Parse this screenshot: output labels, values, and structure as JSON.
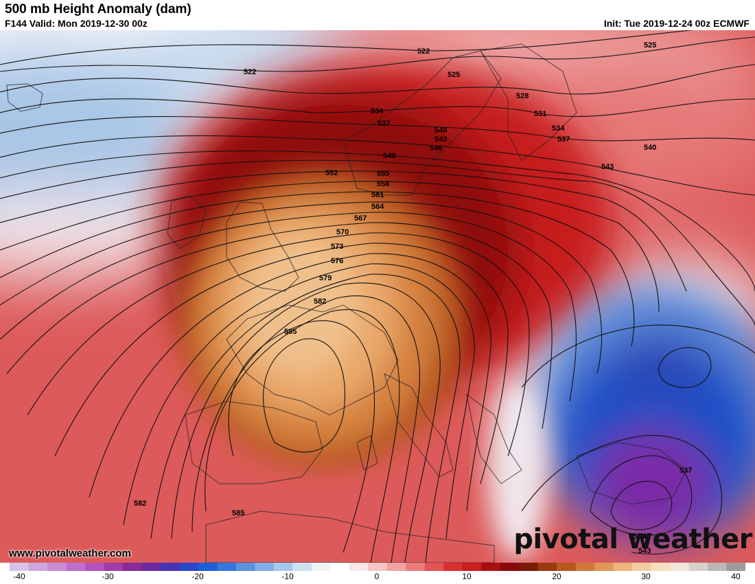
{
  "header": {
    "title": "500 mb Height Anomaly (dam)",
    "valid": "F144 Valid: Mon 2019-12-30 00z",
    "init": "Init: Tue 2019-12-24 00z ECMWF"
  },
  "footer": {
    "website": "www.pivotalweather.com",
    "logo": "pivotal weather"
  },
  "contour_labels": [
    "522",
    "522",
    "525",
    "525",
    "528",
    "531",
    "534",
    "534",
    "537",
    "537",
    "540",
    "540",
    "543",
    "543",
    "546",
    "549",
    "552",
    "555",
    "558",
    "561",
    "564",
    "567",
    "570",
    "573",
    "576",
    "579",
    "582",
    "582",
    "585",
    "585",
    "537",
    "540",
    "540",
    "543"
  ],
  "colorbar": {
    "min": -40,
    "max": 40,
    "tick_labels": [
      "-40",
      "-30",
      "-20",
      "-10",
      "0",
      "10",
      "20",
      "30",
      "40"
    ],
    "colors": [
      "#d8c2e8",
      "#d0a6e0",
      "#c98ad6",
      "#c06ecc",
      "#b452bd",
      "#a23aa8",
      "#8a2a9a",
      "#6a2aa0",
      "#4a32b4",
      "#2c46c8",
      "#1c5ed6",
      "#3476da",
      "#5a92e0",
      "#80aee6",
      "#a6c8ec",
      "#cce0f2",
      "#eef4fa",
      "#ffffff",
      "#fae6e6",
      "#f6c6c6",
      "#f0a2a2",
      "#ea7c7c",
      "#e25454",
      "#d8302e",
      "#c81e1e",
      "#a81010",
      "#860a0a",
      "#7a1c08",
      "#9a3a0e",
      "#b8581e",
      "#cf7838",
      "#e09858",
      "#ecb47c",
      "#f4cca0",
      "#f8dec0",
      "#efe6dc",
      "#d6d0cc",
      "#bcb6b4",
      "#a09a98"
    ]
  }
}
